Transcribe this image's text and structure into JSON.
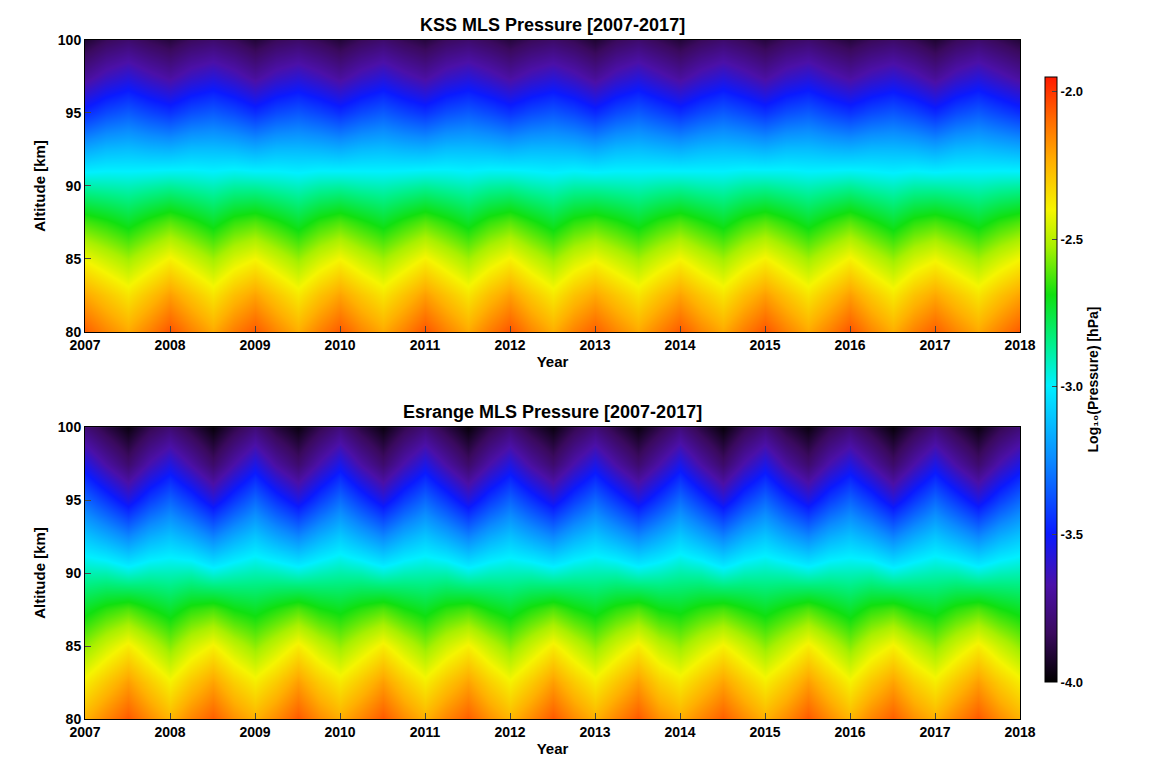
{
  "chart_data": [
    {
      "type": "heatmap",
      "title": "KSS MLS Pressure [2007-2017]",
      "x_label": "Year",
      "y_label": "Altitude [km]",
      "x": [
        2007,
        2007.25,
        2007.5,
        2007.75,
        2008,
        2008.25,
        2008.5,
        2008.75,
        2009,
        2009.25,
        2009.5,
        2009.75,
        2010,
        2010.25,
        2010.5,
        2010.75,
        2011,
        2011.25,
        2011.5,
        2011.75,
        2012,
        2012.25,
        2012.5,
        2012.75,
        2013,
        2013.25,
        2013.5,
        2013.75,
        2014,
        2014.25,
        2014.5,
        2014.75,
        2015,
        2015.25,
        2015.5,
        2015.75,
        2016,
        2016.25,
        2016.5,
        2016.75,
        2017,
        2017.25,
        2017.5,
        2017.75,
        2018
      ],
      "y": [
        80,
        82.5,
        85,
        87.5,
        90,
        92.5,
        95,
        97.5,
        100
      ],
      "z": [
        [
          -2.07,
          -2.15,
          -2.22,
          -2.14,
          -2.05,
          -2.14,
          -2.22,
          -2.13,
          -2.06,
          -2.15,
          -2.23,
          -2.14,
          -2.06,
          -2.15,
          -2.22,
          -2.14,
          -2.05,
          -2.14,
          -2.22,
          -2.13,
          -2.05,
          -2.15,
          -2.23,
          -2.14,
          -2.07,
          -2.15,
          -2.22,
          -2.14,
          -2.06,
          -2.15,
          -2.22,
          -2.13,
          -2.05,
          -2.14,
          -2.22,
          -2.14,
          -2.05,
          -2.15,
          -2.23,
          -2.14,
          -2.07,
          -2.15,
          -2.22,
          -2.14,
          -2.06
        ],
        [
          -2.22,
          -2.29,
          -2.36,
          -2.28,
          -2.2,
          -2.28,
          -2.36,
          -2.27,
          -2.21,
          -2.29,
          -2.37,
          -2.28,
          -2.21,
          -2.29,
          -2.36,
          -2.28,
          -2.2,
          -2.28,
          -2.36,
          -2.27,
          -2.2,
          -2.29,
          -2.37,
          -2.28,
          -2.22,
          -2.29,
          -2.36,
          -2.28,
          -2.21,
          -2.29,
          -2.36,
          -2.27,
          -2.2,
          -2.28,
          -2.36,
          -2.28,
          -2.2,
          -2.29,
          -2.37,
          -2.28,
          -2.22,
          -2.29,
          -2.36,
          -2.28,
          -2.21
        ],
        [
          -2.41,
          -2.47,
          -2.53,
          -2.46,
          -2.39,
          -2.46,
          -2.53,
          -2.45,
          -2.4,
          -2.47,
          -2.54,
          -2.46,
          -2.4,
          -2.47,
          -2.53,
          -2.46,
          -2.39,
          -2.46,
          -2.53,
          -2.45,
          -2.39,
          -2.47,
          -2.54,
          -2.46,
          -2.41,
          -2.47,
          -2.53,
          -2.46,
          -2.4,
          -2.47,
          -2.53,
          -2.45,
          -2.39,
          -2.46,
          -2.53,
          -2.46,
          -2.39,
          -2.47,
          -2.54,
          -2.46,
          -2.41,
          -2.47,
          -2.53,
          -2.46,
          -2.4
        ],
        [
          -2.63,
          -2.67,
          -2.72,
          -2.66,
          -2.61,
          -2.66,
          -2.72,
          -2.65,
          -2.62,
          -2.67,
          -2.73,
          -2.66,
          -2.62,
          -2.67,
          -2.72,
          -2.66,
          -2.61,
          -2.66,
          -2.72,
          -2.65,
          -2.61,
          -2.67,
          -2.73,
          -2.66,
          -2.63,
          -2.67,
          -2.72,
          -2.66,
          -2.62,
          -2.67,
          -2.72,
          -2.65,
          -2.61,
          -2.66,
          -2.72,
          -2.66,
          -2.61,
          -2.67,
          -2.73,
          -2.66,
          -2.63,
          -2.67,
          -2.72,
          -2.66,
          -2.62
        ],
        [
          -2.89,
          -2.9,
          -2.91,
          -2.89,
          -2.87,
          -2.89,
          -2.91,
          -2.88,
          -2.88,
          -2.9,
          -2.92,
          -2.89,
          -2.88,
          -2.9,
          -2.91,
          -2.89,
          -2.87,
          -2.89,
          -2.91,
          -2.88,
          -2.87,
          -2.9,
          -2.92,
          -2.89,
          -2.89,
          -2.9,
          -2.91,
          -2.89,
          -2.88,
          -2.9,
          -2.91,
          -2.88,
          -2.87,
          -2.89,
          -2.91,
          -2.89,
          -2.87,
          -2.9,
          -2.92,
          -2.89,
          -2.89,
          -2.9,
          -2.91,
          -2.89,
          -2.88
        ],
        [
          -3.17,
          -3.13,
          -3.12,
          -3.14,
          -3.15,
          -3.12,
          -3.12,
          -3.13,
          -3.16,
          -3.13,
          -3.13,
          -3.14,
          -3.16,
          -3.13,
          -3.12,
          -3.14,
          -3.15,
          -3.12,
          -3.12,
          -3.13,
          -3.15,
          -3.13,
          -3.13,
          -3.14,
          -3.17,
          -3.13,
          -3.12,
          -3.14,
          -3.16,
          -3.13,
          -3.12,
          -3.13,
          -3.15,
          -3.12,
          -3.12,
          -3.14,
          -3.15,
          -3.13,
          -3.13,
          -3.14,
          -3.17,
          -3.13,
          -3.12,
          -3.14,
          -3.16
        ],
        [
          -3.46,
          -3.39,
          -3.35,
          -3.4,
          -3.44,
          -3.38,
          -3.35,
          -3.39,
          -3.45,
          -3.39,
          -3.36,
          -3.4,
          -3.45,
          -3.39,
          -3.35,
          -3.4,
          -3.44,
          -3.38,
          -3.35,
          -3.39,
          -3.44,
          -3.39,
          -3.36,
          -3.4,
          -3.46,
          -3.39,
          -3.35,
          -3.4,
          -3.45,
          -3.39,
          -3.35,
          -3.39,
          -3.44,
          -3.38,
          -3.35,
          -3.4,
          -3.44,
          -3.39,
          -3.36,
          -3.4,
          -3.46,
          -3.39,
          -3.35,
          -3.4,
          -3.45
        ],
        [
          -3.71,
          -3.63,
          -3.58,
          -3.64,
          -3.69,
          -3.62,
          -3.58,
          -3.63,
          -3.7,
          -3.63,
          -3.59,
          -3.64,
          -3.7,
          -3.63,
          -3.58,
          -3.64,
          -3.69,
          -3.62,
          -3.58,
          -3.63,
          -3.69,
          -3.63,
          -3.59,
          -3.64,
          -3.71,
          -3.63,
          -3.58,
          -3.64,
          -3.7,
          -3.63,
          -3.58,
          -3.63,
          -3.69,
          -3.62,
          -3.58,
          -3.64,
          -3.69,
          -3.63,
          -3.59,
          -3.64,
          -3.71,
          -3.63,
          -3.58,
          -3.64,
          -3.7
        ],
        [
          -3.91,
          -3.84,
          -3.8,
          -3.85,
          -3.89,
          -3.83,
          -3.8,
          -3.84,
          -3.9,
          -3.84,
          -3.81,
          -3.85,
          -3.9,
          -3.84,
          -3.8,
          -3.85,
          -3.89,
          -3.83,
          -3.8,
          -3.84,
          -3.89,
          -3.84,
          -3.81,
          -3.85,
          -3.91,
          -3.84,
          -3.8,
          -3.85,
          -3.9,
          -3.84,
          -3.8,
          -3.84,
          -3.89,
          -3.83,
          -3.8,
          -3.85,
          -3.89,
          -3.84,
          -3.81,
          -3.85,
          -3.91,
          -3.84,
          -3.8,
          -3.85,
          -3.9
        ]
      ],
      "xlim": [
        2007,
        2018
      ],
      "ylim": [
        80,
        100
      ],
      "xticks": [
        2007,
        2008,
        2009,
        2010,
        2011,
        2012,
        2013,
        2014,
        2015,
        2016,
        2017,
        2018
      ],
      "yticks": [
        80,
        85,
        90,
        95,
        100
      ]
    },
    {
      "type": "heatmap",
      "title": "Esrange MLS Pressure [2007-2017]",
      "x_label": "Year",
      "y_label": "Altitude [km]",
      "x": [
        2007,
        2007.25,
        2007.5,
        2007.75,
        2008,
        2008.25,
        2008.5,
        2008.75,
        2009,
        2009.25,
        2009.5,
        2009.75,
        2010,
        2010.25,
        2010.5,
        2010.75,
        2011,
        2011.25,
        2011.5,
        2011.75,
        2012,
        2012.25,
        2012.5,
        2012.75,
        2013,
        2013.25,
        2013.5,
        2013.75,
        2014,
        2014.25,
        2014.5,
        2014.75,
        2015,
        2015.25,
        2015.5,
        2015.75,
        2016,
        2016.25,
        2016.5,
        2016.75,
        2017,
        2017.25,
        2017.5,
        2017.75,
        2018
      ],
      "y": [
        80,
        82.5,
        85,
        87.5,
        90,
        92.5,
        95,
        97.5,
        100
      ],
      "z": [
        [
          -2.24,
          -2.15,
          -2.06,
          -2.16,
          -2.25,
          -2.15,
          -2.07,
          -2.17,
          -2.24,
          -2.16,
          -2.06,
          -2.16,
          -2.23,
          -2.15,
          -2.06,
          -2.16,
          -2.24,
          -2.15,
          -2.07,
          -2.17,
          -2.25,
          -2.16,
          -2.06,
          -2.16,
          -2.24,
          -2.15,
          -2.06,
          -2.17,
          -2.23,
          -2.15,
          -2.07,
          -2.16,
          -2.24,
          -2.16,
          -2.06,
          -2.16,
          -2.25,
          -2.15,
          -2.07,
          -2.17,
          -2.24,
          -2.15,
          -2.06,
          -2.16,
          -2.24
        ],
        [
          -2.38,
          -2.29,
          -2.2,
          -2.3,
          -2.39,
          -2.29,
          -2.21,
          -2.31,
          -2.38,
          -2.3,
          -2.2,
          -2.3,
          -2.37,
          -2.29,
          -2.2,
          -2.3,
          -2.38,
          -2.29,
          -2.21,
          -2.31,
          -2.39,
          -2.3,
          -2.2,
          -2.3,
          -2.38,
          -2.29,
          -2.2,
          -2.31,
          -2.37,
          -2.29,
          -2.21,
          -2.3,
          -2.38,
          -2.3,
          -2.2,
          -2.3,
          -2.39,
          -2.29,
          -2.21,
          -2.31,
          -2.38,
          -2.29,
          -2.2,
          -2.3,
          -2.38
        ],
        [
          -2.55,
          -2.46,
          -2.38,
          -2.47,
          -2.56,
          -2.46,
          -2.39,
          -2.48,
          -2.55,
          -2.47,
          -2.38,
          -2.47,
          -2.54,
          -2.46,
          -2.38,
          -2.47,
          -2.55,
          -2.46,
          -2.39,
          -2.48,
          -2.56,
          -2.47,
          -2.38,
          -2.47,
          -2.55,
          -2.46,
          -2.38,
          -2.48,
          -2.54,
          -2.46,
          -2.39,
          -2.47,
          -2.55,
          -2.47,
          -2.38,
          -2.47,
          -2.56,
          -2.46,
          -2.39,
          -2.48,
          -2.55,
          -2.46,
          -2.38,
          -2.47,
          -2.55
        ],
        [
          -2.72,
          -2.66,
          -2.62,
          -2.68,
          -2.73,
          -2.66,
          -2.63,
          -2.69,
          -2.72,
          -2.67,
          -2.62,
          -2.68,
          -2.71,
          -2.66,
          -2.62,
          -2.68,
          -2.72,
          -2.66,
          -2.63,
          -2.69,
          -2.73,
          -2.67,
          -2.62,
          -2.68,
          -2.72,
          -2.66,
          -2.62,
          -2.69,
          -2.71,
          -2.66,
          -2.63,
          -2.68,
          -2.72,
          -2.67,
          -2.62,
          -2.68,
          -2.73,
          -2.66,
          -2.63,
          -2.69,
          -2.72,
          -2.66,
          -2.62,
          -2.68,
          -2.72
        ],
        [
          -2.9,
          -2.9,
          -2.94,
          -2.91,
          -2.91,
          -2.9,
          -2.95,
          -2.92,
          -2.9,
          -2.91,
          -2.94,
          -2.91,
          -2.89,
          -2.9,
          -2.94,
          -2.91,
          -2.9,
          -2.9,
          -2.95,
          -2.92,
          -2.91,
          -2.91,
          -2.94,
          -2.91,
          -2.9,
          -2.9,
          -2.94,
          -2.92,
          -2.89,
          -2.9,
          -2.95,
          -2.91,
          -2.9,
          -2.91,
          -2.94,
          -2.91,
          -2.91,
          -2.9,
          -2.95,
          -2.92,
          -2.9,
          -2.9,
          -2.94,
          -2.91,
          -2.9
        ],
        [
          -3.1,
          -3.17,
          -3.25,
          -3.16,
          -3.11,
          -3.17,
          -3.26,
          -3.17,
          -3.1,
          -3.18,
          -3.25,
          -3.16,
          -3.09,
          -3.17,
          -3.25,
          -3.16,
          -3.1,
          -3.17,
          -3.26,
          -3.17,
          -3.11,
          -3.18,
          -3.25,
          -3.16,
          -3.1,
          -3.17,
          -3.25,
          -3.17,
          -3.09,
          -3.17,
          -3.26,
          -3.16,
          -3.1,
          -3.18,
          -3.25,
          -3.16,
          -3.11,
          -3.17,
          -3.26,
          -3.17,
          -3.1,
          -3.17,
          -3.25,
          -3.16,
          -3.1
        ],
        [
          -3.32,
          -3.43,
          -3.55,
          -3.42,
          -3.33,
          -3.43,
          -3.56,
          -3.43,
          -3.32,
          -3.44,
          -3.55,
          -3.42,
          -3.31,
          -3.43,
          -3.55,
          -3.42,
          -3.32,
          -3.43,
          -3.56,
          -3.43,
          -3.33,
          -3.44,
          -3.55,
          -3.42,
          -3.32,
          -3.43,
          -3.55,
          -3.43,
          -3.31,
          -3.43,
          -3.56,
          -3.42,
          -3.32,
          -3.44,
          -3.55,
          -3.42,
          -3.33,
          -3.43,
          -3.56,
          -3.43,
          -3.32,
          -3.43,
          -3.55,
          -3.42,
          -3.32
        ],
        [
          -3.55,
          -3.68,
          -3.8,
          -3.66,
          -3.56,
          -3.68,
          -3.81,
          -3.67,
          -3.55,
          -3.69,
          -3.8,
          -3.66,
          -3.54,
          -3.68,
          -3.8,
          -3.66,
          -3.55,
          -3.68,
          -3.81,
          -3.67,
          -3.56,
          -3.69,
          -3.8,
          -3.66,
          -3.55,
          -3.68,
          -3.8,
          -3.67,
          -3.54,
          -3.68,
          -3.81,
          -3.66,
          -3.55,
          -3.69,
          -3.8,
          -3.66,
          -3.56,
          -3.68,
          -3.81,
          -3.67,
          -3.55,
          -3.68,
          -3.8,
          -3.66,
          -3.55
        ],
        [
          -3.78,
          -3.88,
          -3.97,
          -3.86,
          -3.79,
          -3.88,
          -3.98,
          -3.87,
          -3.78,
          -3.89,
          -3.97,
          -3.86,
          -3.77,
          -3.88,
          -3.97,
          -3.86,
          -3.78,
          -3.88,
          -3.98,
          -3.87,
          -3.79,
          -3.89,
          -3.97,
          -3.86,
          -3.78,
          -3.88,
          -3.97,
          -3.87,
          -3.77,
          -3.88,
          -3.98,
          -3.86,
          -3.78,
          -3.89,
          -3.97,
          -3.86,
          -3.79,
          -3.88,
          -3.98,
          -3.87,
          -3.78,
          -3.88,
          -3.97,
          -3.86,
          -3.78
        ]
      ],
      "xlim": [
        2007,
        2018
      ],
      "ylim": [
        80,
        100
      ],
      "xticks": [
        2007,
        2008,
        2009,
        2010,
        2011,
        2012,
        2013,
        2014,
        2015,
        2016,
        2017,
        2018
      ],
      "yticks": [
        80,
        85,
        90,
        95,
        100
      ]
    }
  ],
  "colorbar": {
    "label": "Log₁₀(Pressure) [hPa]",
    "range": [
      -4.0,
      -1.95
    ],
    "ticks": [
      {
        "value": -2,
        "label": "-2.0"
      },
      -2.5,
      {
        "value": -3,
        "label": "-3.0"
      },
      -3.5,
      {
        "value": -4,
        "label": "-4.0"
      }
    ]
  }
}
